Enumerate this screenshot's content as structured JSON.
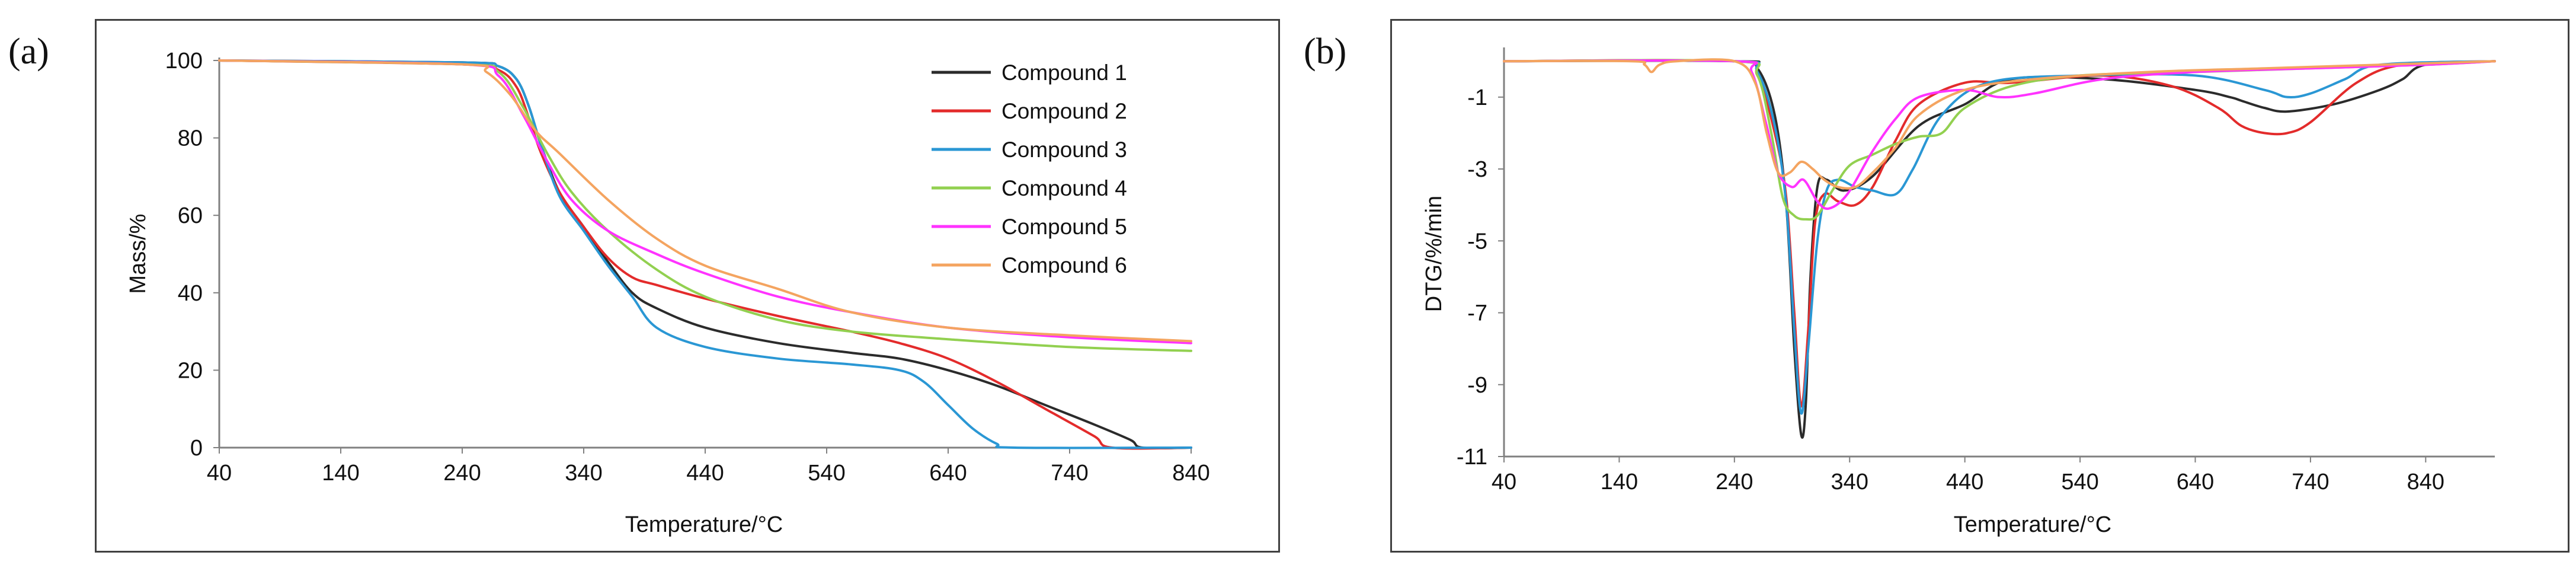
{
  "panels": [
    {
      "label": "(a)",
      "chart_data": {
        "type": "line",
        "title": "",
        "xlabel": "Temperature/°C",
        "ylabel": "Mass/%",
        "xlim": [
          40,
          840
        ],
        "ylim": [
          0,
          100
        ],
        "xticks": [
          40,
          140,
          240,
          340,
          440,
          540,
          640,
          740,
          840
        ],
        "yticks": [
          0,
          20,
          40,
          60,
          80,
          100
        ],
        "legend_position": "top-right",
        "series": [
          {
            "name": "Compound 1",
            "color": "#2b2b2b",
            "x": [
              40,
              240,
              270,
              285,
              295,
              305,
              320,
              340,
              360,
              380,
              400,
              440,
              500,
              560,
              600,
              640,
              680,
              720,
              760,
              790,
              800,
              840
            ],
            "y": [
              100,
              99.5,
              98.5,
              95,
              88,
              78,
              66,
              57,
              48,
              40,
              36,
              31,
              27,
              24.5,
              23,
              20,
              16,
              11,
              6,
              2,
              0,
              0
            ]
          },
          {
            "name": "Compound 2",
            "color": "#e32b2b",
            "x": [
              40,
              240,
              270,
              285,
              295,
              305,
              320,
              340,
              360,
              380,
              400,
              440,
              500,
              560,
              600,
              640,
              680,
              720,
              760,
              775,
              840
            ],
            "y": [
              100,
              99,
              97.5,
              93,
              85,
              76,
              66,
              57,
              49,
              44,
              42,
              38.5,
              34,
              30,
              27,
              23,
              17,
              10,
              3,
              0,
              0
            ]
          },
          {
            "name": "Compound 3",
            "color": "#2a97d4",
            "x": [
              40,
              240,
              270,
              285,
              295,
              305,
              320,
              340,
              360,
              380,
              400,
              440,
              500,
              560,
              600,
              620,
              640,
              660,
              680,
              695,
              840
            ],
            "y": [
              100,
              99.5,
              98.5,
              95,
              88,
              78,
              65,
              56,
              47,
              39,
              31,
              26,
              23,
              21.5,
              20,
              17,
              11,
              5,
              1,
              0,
              0
            ]
          },
          {
            "name": "Compound 4",
            "color": "#92d050",
            "x": [
              40,
              240,
              270,
              290,
              310,
              330,
              360,
              400,
              440,
              500,
              560,
              640,
              740,
              840
            ],
            "y": [
              100,
              99,
              97,
              88,
              76,
              66,
              56,
              46,
              39,
              33,
              30,
              28,
              26,
              25
            ]
          },
          {
            "name": "Compound 5",
            "color": "#ff33ff",
            "x": [
              40,
              240,
              270,
              290,
              310,
              330,
              360,
              400,
              440,
              500,
              560,
              640,
              740,
              840
            ],
            "y": [
              100,
              99,
              96,
              86,
              74,
              64,
              56,
              50,
              45,
              39,
              35,
              31,
              28.5,
              27
            ]
          },
          {
            "name": "Compound 6",
            "color": "#f4a460",
            "x": [
              40,
              240,
              260,
              280,
              300,
              320,
              360,
              400,
              440,
              500,
              560,
              640,
              740,
              840
            ],
            "y": [
              100,
              99,
              97,
              91,
              82,
              76,
              64,
              54,
              47,
              41,
              35,
              31,
              29,
              27.5
            ]
          }
        ]
      }
    },
    {
      "label": "(b)",
      "chart_data": {
        "type": "line",
        "title": "",
        "xlabel": "Temperature/°C",
        "ylabel": "DTG/%/min",
        "xlim": [
          40,
          900
        ],
        "ylim": [
          -11,
          0.3
        ],
        "xticks": [
          40,
          140,
          240,
          340,
          440,
          540,
          640,
          740,
          840
        ],
        "yticks": [
          -1,
          -3,
          -5,
          -7,
          -9,
          -11
        ],
        "legend_position": "none",
        "series": [
          {
            "name": "Compound 1",
            "color": "#2b2b2b",
            "x": [
              40,
              240,
              260,
              275,
              285,
              292,
              298,
              302,
              306,
              312,
              320,
              335,
              360,
              400,
              440,
              480,
              560,
              640,
              670,
              680,
              700,
              720,
              760,
              800,
              820,
              840,
              900
            ],
            "y": [
              0,
              0,
              -0.2,
              -1.5,
              -4,
              -8,
              -10.4,
              -9.5,
              -6,
              -3.5,
              -3.3,
              -3.6,
              -3.2,
              -1.8,
              -1.2,
              -0.5,
              -0.5,
              -0.8,
              -1,
              -1.1,
              -1.3,
              -1.4,
              -1.2,
              -0.8,
              -0.5,
              -0.1,
              0
            ]
          },
          {
            "name": "Compound 2",
            "color": "#e32b2b",
            "x": [
              40,
              240,
              260,
              275,
              285,
              292,
              298,
              304,
              310,
              318,
              330,
              345,
              360,
              380,
              400,
              440,
              480,
              560,
              620,
              660,
              680,
              700,
              720,
              740,
              780,
              820,
              900
            ],
            "y": [
              0,
              0,
              -0.4,
              -2,
              -3.8,
              -7,
              -9.6,
              -7.5,
              -4.5,
              -3.7,
              -3.9,
              -4,
              -3.5,
              -2.2,
              -1.2,
              -0.6,
              -0.6,
              -0.4,
              -0.7,
              -1.3,
              -1.8,
              -2,
              -2,
              -1.7,
              -0.6,
              -0.1,
              0
            ]
          },
          {
            "name": "Compound 3",
            "color": "#2a97d4",
            "x": [
              40,
              240,
              260,
              275,
              285,
              292,
              298,
              304,
              312,
              320,
              330,
              345,
              360,
              380,
              395,
              420,
              460,
              540,
              640,
              700,
              720,
              740,
              770,
              800,
              900
            ],
            "y": [
              0,
              0,
              -0.3,
              -1.8,
              -4,
              -7.5,
              -9.8,
              -8,
              -5,
              -3.6,
              -3.3,
              -3.5,
              -3.6,
              -3.7,
              -3,
              -1.5,
              -0.6,
              -0.4,
              -0.4,
              -0.8,
              -1,
              -0.9,
              -0.5,
              -0.1,
              0
            ]
          },
          {
            "name": "Compound 4",
            "color": "#92d050",
            "x": [
              40,
              240,
              260,
              272,
              282,
              292,
              302,
              312,
              325,
              340,
              360,
              380,
              400,
              420,
              440,
              480,
              540,
              640,
              740,
              840,
              900
            ],
            "y": [
              0,
              0,
              -0.4,
              -2,
              -3.8,
              -4.3,
              -4.4,
              -4.3,
              -3.6,
              -2.9,
              -2.6,
              -2.3,
              -2.1,
              -2,
              -1.3,
              -0.7,
              -0.4,
              -0.3,
              -0.2,
              -0.1,
              0
            ]
          },
          {
            "name": "Compound 5",
            "color": "#ff33ff",
            "x": [
              40,
              240,
              255,
              268,
              278,
              290,
              300,
              312,
              322,
              338,
              360,
              380,
              400,
              440,
              470,
              500,
              560,
              640,
              740,
              840,
              900
            ],
            "y": [
              0,
              0,
              -0.3,
              -1.8,
              -3.1,
              -3.5,
              -3.3,
              -3.9,
              -4.1,
              -3.7,
              -2.5,
              -1.6,
              -1,
              -0.8,
              -1,
              -0.9,
              -0.5,
              -0.3,
              -0.2,
              -0.1,
              0
            ]
          },
          {
            "name": "Compound 6",
            "color": "#f4a460",
            "x": [
              40,
              150,
              162,
              168,
              175,
              190,
              240,
              258,
              268,
              278,
              288,
              298,
              308,
              318,
              330,
              345,
              360,
              380,
              400,
              440,
              500,
              600,
              700,
              800,
              900
            ],
            "y": [
              0,
              0,
              -0.1,
              -0.3,
              -0.1,
              0,
              0,
              -0.6,
              -2,
              -3.1,
              -3.1,
              -2.8,
              -3,
              -3.3,
              -3.5,
              -3.5,
              -3.1,
              -2.4,
              -1.5,
              -0.8,
              -0.5,
              -0.3,
              -0.2,
              -0.1,
              0
            ]
          }
        ]
      }
    }
  ]
}
